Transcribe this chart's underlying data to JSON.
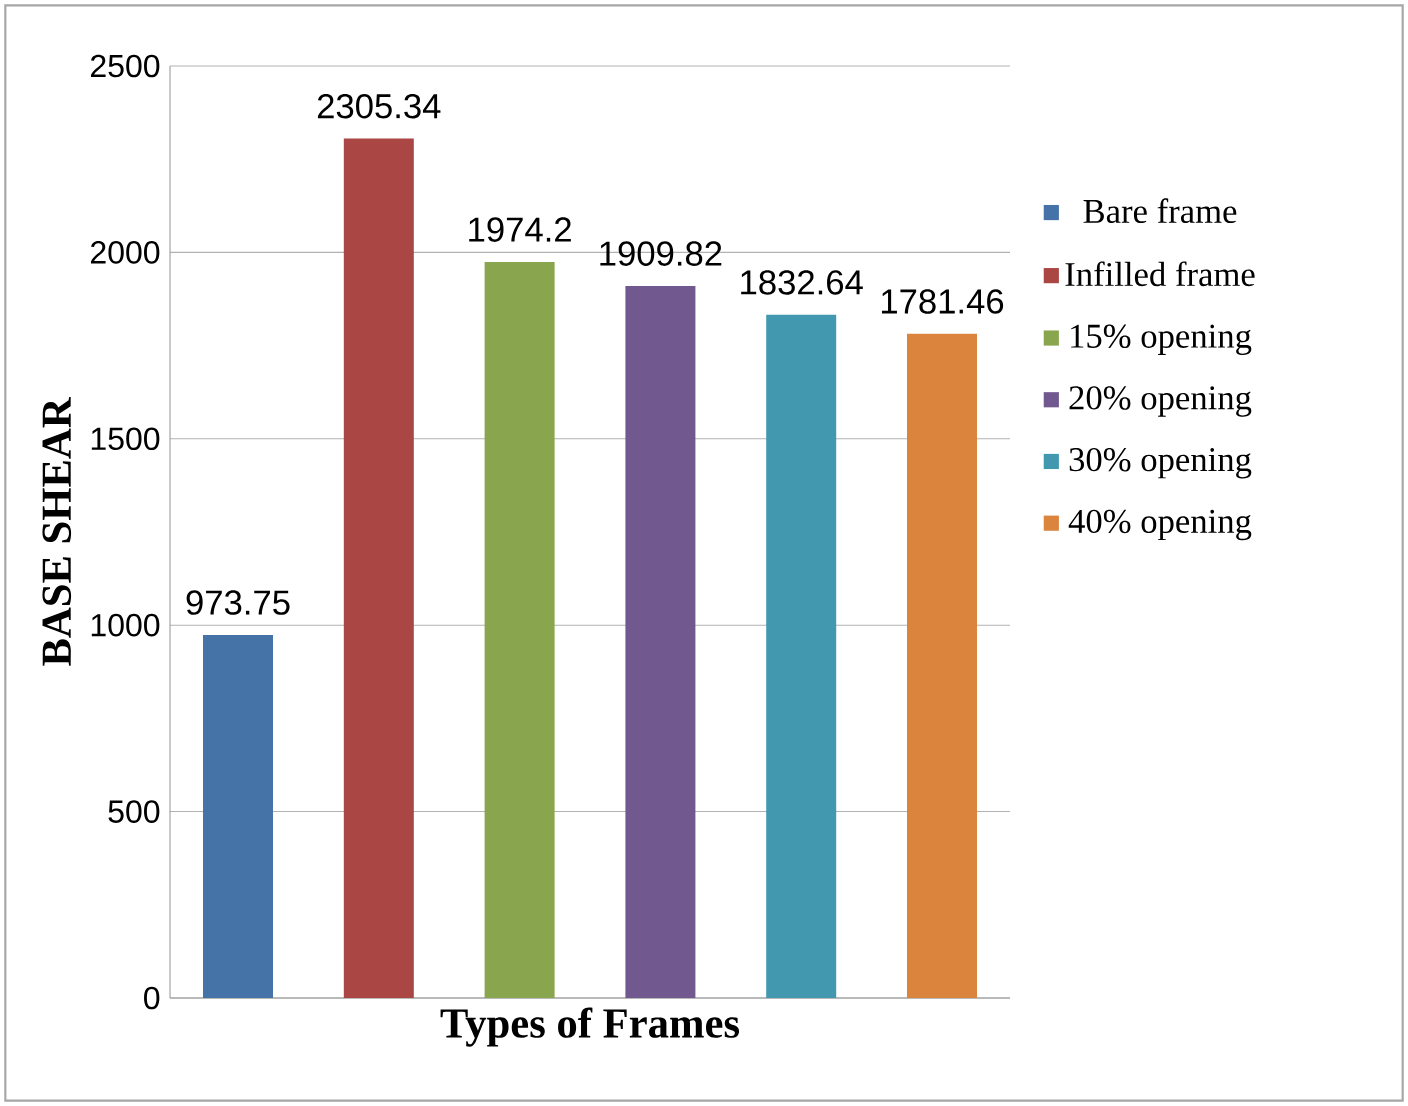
{
  "chart_data": {
    "type": "bar",
    "xlabel": "Types of Frames",
    "ylabel": "BASE SHEAR",
    "categories": [
      null
    ],
    "series": [
      {
        "name": "Bare frame",
        "color": "#4572a7",
        "values": [
          973.75
        ]
      },
      {
        "name": "Infilled frame",
        "color": "#aa4643",
        "values": [
          2305.34
        ]
      },
      {
        "name": "15% opening",
        "color": "#89a54e",
        "values": [
          1974.2
        ]
      },
      {
        "name": "20% opening",
        "color": "#71588f",
        "values": [
          1909.82
        ]
      },
      {
        "name": "30% opening",
        "color": "#4198af",
        "values": [
          1832.64
        ]
      },
      {
        "name": "40% opening",
        "color": "#db843d",
        "values": [
          1781.46
        ]
      }
    ],
    "ylim": [
      0,
      2500
    ],
    "yticks": [
      0,
      500,
      1000,
      1500,
      2000,
      2500
    ],
    "grid": "y",
    "legend": "right",
    "data_labels": true
  }
}
